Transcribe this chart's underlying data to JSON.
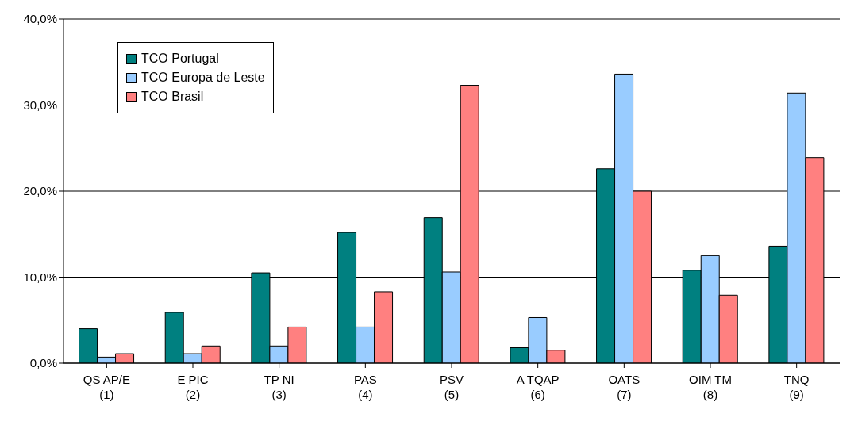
{
  "chart_data": {
    "type": "bar",
    "categories": [
      "QS AP/E\n(1)",
      "E PIC\n(2)",
      "TP NI\n(3)",
      "PAS\n(4)",
      "PSV\n(5)",
      "A TQAP\n(6)",
      "OATS\n(7)",
      "OIM TM\n(8)",
      "TNQ\n(9)"
    ],
    "series": [
      {
        "name": "TCO Portugal",
        "color": "#008080",
        "values": [
          4.0,
          5.9,
          10.5,
          15.2,
          16.9,
          1.8,
          22.6,
          10.8,
          13.6
        ]
      },
      {
        "name": "TCO Europa de Leste",
        "color": "#99ccff",
        "values": [
          0.7,
          1.1,
          2.0,
          4.2,
          10.6,
          5.3,
          33.6,
          12.5,
          31.4
        ]
      },
      {
        "name": "TCO Brasil",
        "color": "#ff8080",
        "values": [
          1.1,
          2.0,
          4.2,
          8.3,
          32.3,
          1.5,
          20.0,
          7.9,
          23.9
        ]
      }
    ],
    "ylim": [
      0,
      40
    ],
    "yticks": [
      {
        "value": 0,
        "label": "0,0%"
      },
      {
        "value": 10,
        "label": "10,0%"
      },
      {
        "value": 20,
        "label": "20,0%"
      },
      {
        "value": 30,
        "label": "30,0%"
      },
      {
        "value": 40,
        "label": "40,0%"
      }
    ],
    "grid": "y",
    "legend": "top left"
  }
}
